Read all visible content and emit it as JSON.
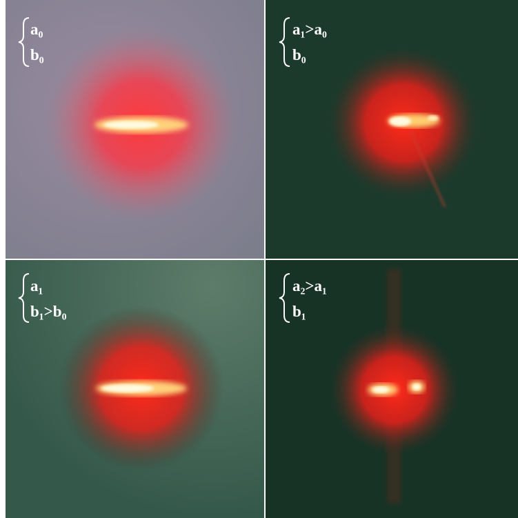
{
  "panels": [
    {
      "label_lines": [
        "a₀",
        "b₀"
      ]
    },
    {
      "label_lines": [
        "a₁>a₀",
        "b₀"
      ]
    },
    {
      "label_lines": [
        "a₁",
        "b₁>b₀"
      ]
    },
    {
      "label_lines": [
        "a₂>a₁",
        "b₁"
      ]
    }
  ]
}
